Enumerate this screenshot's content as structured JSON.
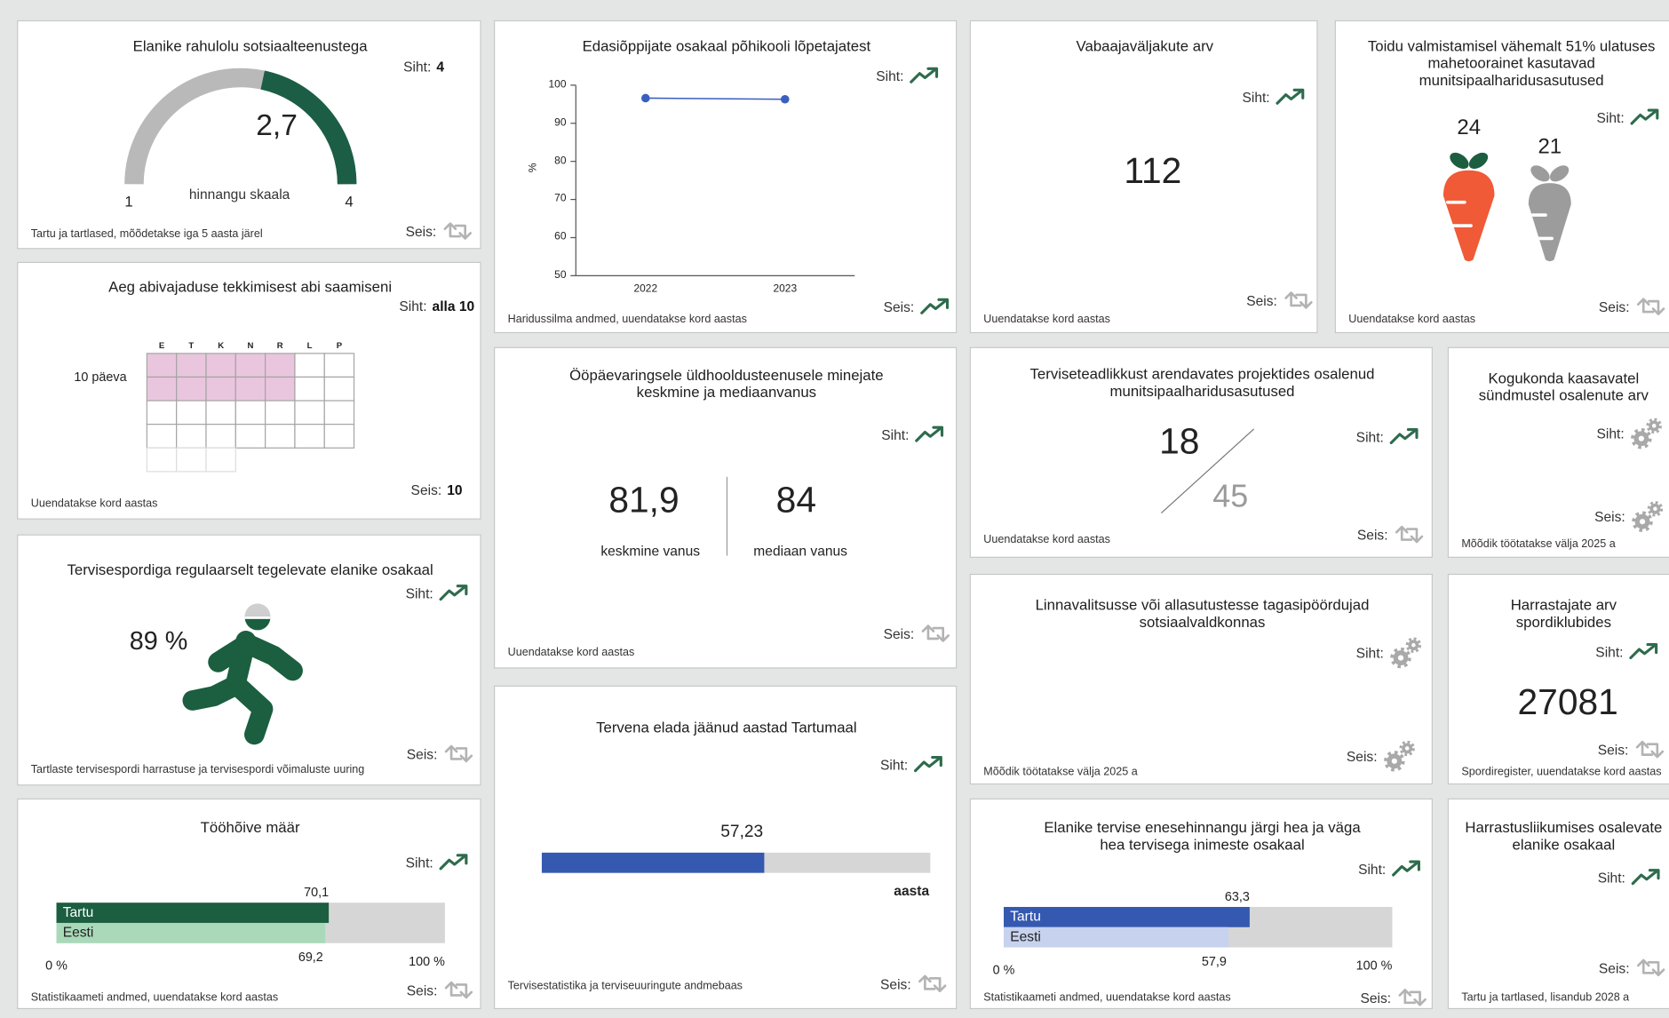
{
  "cards": [
    {
      "title": "Elanike rahulolu sotsiaalteenustega",
      "target_label": "Siht:",
      "target": 4,
      "status_label": "Seis:",
      "footer": "Tartu ja tartlased, mõõdetakse iga 5 aasta järel",
      "gauge": {
        "value": 2.7,
        "label": "2,7",
        "min": 1,
        "max": 4,
        "caption": "hinnangu skaala"
      }
    },
    {
      "title": "Aeg abivajaduse tekkimisest abi saamiseni",
      "target_label": "Siht:",
      "target": "alla 10",
      "status_label": "Seis:",
      "status": 10,
      "footer": "Uuendatakse kord aastas",
      "calendar": {
        "weekdays": [
          "E",
          "T",
          "K",
          "N",
          "R",
          "L",
          "P"
        ],
        "days": {
          "value": 10,
          "label": "10 päeva"
        }
      }
    },
    {
      "title": "Tervisespordiga regulaarselt tegelevate elanike osakaal",
      "target_label": "Siht:",
      "status_label": "Seis:",
      "footer": "Tartlaste tervisespordi harrastuse ja tervisespordi võimaluste uuring",
      "share": "89 %"
    },
    {
      "title": "Tööhõive määr",
      "target_label": "Siht:",
      "status_label": "Seis:",
      "footer": "Statistikaameti andmed, uuendatakse kord aastas",
      "bars": {
        "rows": [
          {
            "name": "Tartu",
            "value": 70.1,
            "label": "70,1",
            "color": "#1b5e40"
          },
          {
            "name": "Eesti",
            "value": 69.2,
            "label": "69,2",
            "color": "#a9d9b9"
          }
        ],
        "min": {
          "value": 0,
          "label": "0 %"
        },
        "max": {
          "value": 100,
          "label": "100 %"
        }
      }
    },
    {
      "title": "Edasiõppijate osakaal põhikooli lõpetajatest",
      "target_label": "Siht:",
      "status_label": "Seis:",
      "footer": "Haridussilma andmed, uuendatakse kord aastas",
      "chart": {
        "type": "line",
        "x": [
          "2022",
          "2023"
        ],
        "values": [
          96.6,
          96.3
        ],
        "color": "#3a5fc0",
        "ylabel": "%",
        "ylim": [
          50,
          100
        ],
        "yticks": [
          50,
          60,
          70,
          80,
          90,
          100
        ]
      }
    },
    {
      "title": "Ööpäevaringsele üldhooldusteenusele minejate keskmine ja mediaanvanus",
      "target_label": "Siht:",
      "status_label": "Seis:",
      "footer": "Uuendatakse kord aastas",
      "pair": [
        {
          "number": "81,9",
          "caption": "keskmine vanus"
        },
        {
          "number": 84,
          "caption": "mediaan vanus"
        }
      ]
    },
    {
      "title": "Tervena elada jäänud aastad Tartumaal",
      "target_label": "Siht:",
      "status_label": "Seis:",
      "footer": "Tervisestatistika ja terviseuuringute andmebaas",
      "years": {
        "value": 57.23,
        "label": "57,23",
        "unit": "aasta",
        "color": "#3558b0"
      }
    },
    {
      "title": "Vabaajaväljakute arv",
      "target_label": "Siht:",
      "status_label": "Seis:",
      "footer": "Uuendatakse kord aastas",
      "number": 112
    },
    {
      "title": "Toidu valmistamisel vähemalt 51% ulatuses mahetoorainet kasutavad munitsipaalharidusasutused",
      "target_label": "Siht:",
      "status_label": "Seis:",
      "footer": "Uuendatakse kord aastas",
      "carrots": [
        {
          "value": 24,
          "color": "#f05a36",
          "leaf": "#1b5e40"
        },
        {
          "value": 21,
          "color": "#9c9c9c",
          "leaf": "#9c9c9c"
        }
      ]
    },
    {
      "title": "Terviseteadlikkust arendavates projektides osalenud munitsipaalharidusasutused",
      "target_label": "Siht:",
      "status_label": "Seis:",
      "footer": "Uuendatakse kord aastas",
      "fraction": {
        "part": 18,
        "total": 45
      }
    },
    {
      "title": "Kogukonda kaasavatel sündmustel osalenute arv",
      "target_label": "Siht:",
      "status_label": "Seis:",
      "footer": "Mõõdik töötatakse välja 2025 a"
    },
    {
      "title": "Linnavalitsusse või allasutustesse tagasipöördujad sotsiaalvaldkonnas",
      "target_label": "Siht:",
      "status_label": "Seis:",
      "footer": "Mõõdik töötatakse välja 2025 a"
    },
    {
      "title": "Harrastajate arv spordiklubides",
      "target_label": "Siht:",
      "status_label": "Seis:",
      "footer": "Spordiregister, uuendatakse kord aastas",
      "number": 27081
    },
    {
      "title": "Elanike tervise enesehinnangu järgi hea ja väga hea tervisega inimeste osakaal",
      "target_label": "Siht:",
      "status_label": "Seis:",
      "footer": "Statistikaameti andmed, uuendatakse kord aastas",
      "bars": {
        "rows": [
          {
            "name": "Tartu",
            "value": 63.3,
            "label": "63,3",
            "color": "#3558b0"
          },
          {
            "name": "Eesti",
            "value": 57.9,
            "label": "57,9",
            "color": "#c7d2ee"
          }
        ],
        "min": {
          "value": 0,
          "label": "0 %"
        },
        "max": {
          "value": 100,
          "label": "100 %"
        }
      }
    },
    {
      "title": "Harrastusliikumises osalevate elanike osakaal",
      "target_label": "Siht:",
      "status_label": "Seis:",
      "footer": "Tartu ja tartlased, lisandub 2028 a"
    }
  ]
}
